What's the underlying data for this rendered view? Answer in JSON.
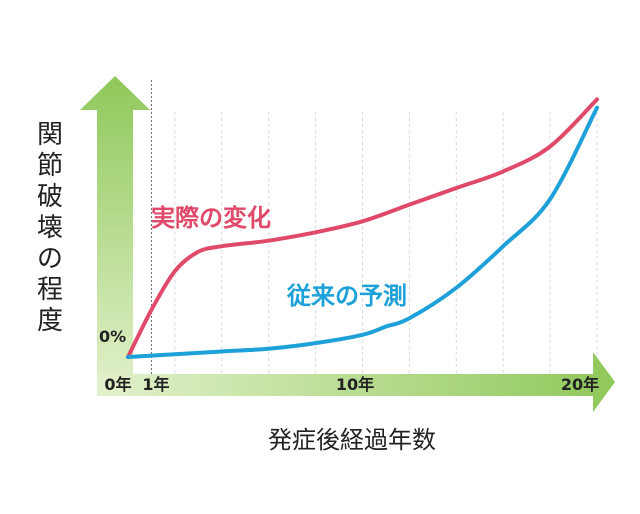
{
  "chart_data": {
    "type": "line",
    "ylabel": "関節破壊の程度",
    "xlabel": "発症後経過年数",
    "y_tick_label": "0%",
    "x_tick_labels": [
      {
        "x": 0,
        "label": "0年"
      },
      {
        "x": 1,
        "label": "1年"
      },
      {
        "x": 10,
        "label": "10年"
      },
      {
        "x": 20,
        "label": "20年"
      }
    ],
    "xlim": [
      0,
      20
    ],
    "ylim": [
      0,
      100
    ],
    "grid": "vertical dashed",
    "colors": {
      "actual": "#e04a6a",
      "predicted": "#1ea0d8",
      "axis_arrows": "#a8d870"
    },
    "series": [
      {
        "name": "実際の変化",
        "color_key": "actual",
        "x": [
          0,
          1,
          2,
          3,
          4,
          5,
          6,
          8,
          10,
          12,
          14,
          16,
          18,
          20
        ],
        "y": [
          0,
          17,
          31,
          38,
          40,
          41,
          42,
          45,
          49,
          55,
          61,
          67,
          76,
          93
        ]
      },
      {
        "name": "従来の予測",
        "color_key": "predicted",
        "x": [
          0,
          2,
          4,
          6,
          8,
          10,
          11,
          12,
          14,
          16,
          18,
          20
        ],
        "y": [
          0,
          1,
          2,
          3,
          5,
          8,
          11,
          14,
          25,
          40,
          57,
          90
        ]
      }
    ]
  }
}
